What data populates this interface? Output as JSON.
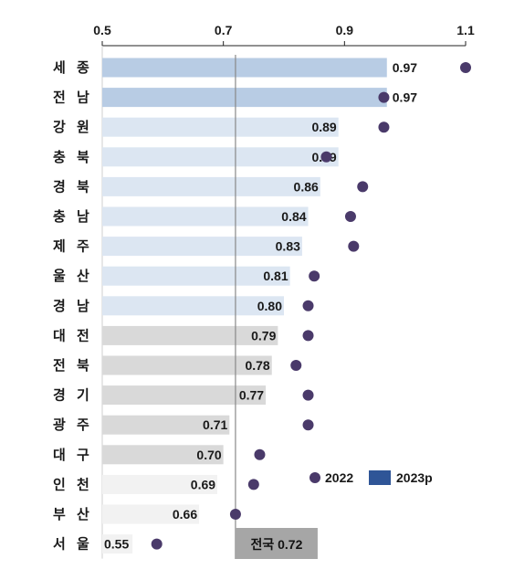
{
  "chart_data": {
    "type": "bar",
    "orientation": "horizontal",
    "xlim": [
      0.5,
      1.1
    ],
    "ticks": [
      "0.5",
      "0.7",
      "0.9",
      "1.1"
    ],
    "grid": false,
    "legend_position": "bottom-right",
    "categories": [
      "세 종",
      "전 남",
      "강 원",
      "충 북",
      "경 북",
      "충 남",
      "제 주",
      "울 산",
      "경 남",
      "대 전",
      "전 북",
      "경 기",
      "광 주",
      "대 구",
      "인 천",
      "부 산",
      "서 울"
    ],
    "series": [
      {
        "name": "2023p",
        "kind": "bar",
        "values": [
          0.97,
          0.97,
          0.89,
          0.89,
          0.86,
          0.84,
          0.83,
          0.81,
          0.8,
          0.79,
          0.78,
          0.77,
          0.71,
          0.7,
          0.69,
          0.66,
          0.55
        ],
        "labels": [
          "0.97",
          "0.97",
          "0.89",
          "0.89",
          "0.86",
          "0.84",
          "0.83",
          "0.81",
          "0.80",
          "0.79",
          "0.78",
          "0.77",
          "0.71",
          "0.70",
          "0.69",
          "0.66",
          "0.55"
        ],
        "fill_colors": [
          "#b8cce4",
          "#b8cce4",
          "#dce6f2",
          "#dce6f2",
          "#dce6f2",
          "#dce6f2",
          "#dce6f2",
          "#dce6f2",
          "#dce6f2",
          "#d9d9d9",
          "#d9d9d9",
          "#d9d9d9",
          "#d9d9d9",
          "#d9d9d9",
          "#f2f2f2",
          "#f2f2f2",
          "#f2f2f2"
        ],
        "legend_color": "#2f5597"
      },
      {
        "name": "2022",
        "kind": "dot",
        "values": [
          1.1,
          0.965,
          0.965,
          0.87,
          0.93,
          0.91,
          0.915,
          0.85,
          0.84,
          0.84,
          0.82,
          0.84,
          0.84,
          0.76,
          0.75,
          0.72,
          0.59
        ],
        "color": "#4a3a6a"
      }
    ],
    "reference_line": {
      "label": "전국 0.72",
      "value": 0.72,
      "line_color": "#888888",
      "label_bg": "#a6a6a6"
    }
  }
}
